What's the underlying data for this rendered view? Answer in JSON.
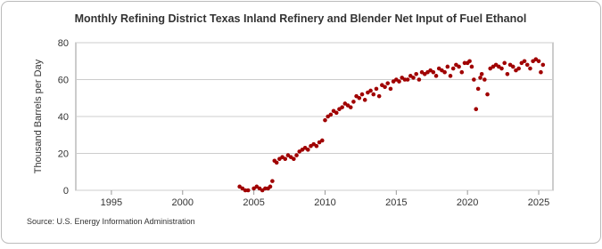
{
  "chart_data": {
    "type": "scatter",
    "title": "Monthly Refining District Texas Inland Refinery and Blender Net Input of Fuel Ethanol",
    "y_label": "Thousand Barrels per Day",
    "source": "Source: U.S. Energy Information Administration",
    "color": "#a00000",
    "x": [
      2004.0,
      2004.2,
      2004.4,
      2004.6,
      2005.0,
      2005.2,
      2005.4,
      2005.6,
      2005.8,
      2006.0,
      2006.15,
      2006.3,
      2006.45,
      2006.6,
      2006.8,
      2007.0,
      2007.2,
      2007.4,
      2007.6,
      2007.8,
      2008.0,
      2008.2,
      2008.4,
      2008.6,
      2008.8,
      2009.0,
      2009.2,
      2009.4,
      2009.6,
      2009.8,
      2010.0,
      2010.2,
      2010.4,
      2010.6,
      2010.8,
      2011.0,
      2011.2,
      2011.4,
      2011.6,
      2011.8,
      2012.0,
      2012.2,
      2012.4,
      2012.6,
      2012.8,
      2013.0,
      2013.2,
      2013.4,
      2013.6,
      2013.8,
      2014.0,
      2014.2,
      2014.4,
      2014.6,
      2014.8,
      2015.0,
      2015.2,
      2015.4,
      2015.6,
      2015.8,
      2016.0,
      2016.2,
      2016.4,
      2016.6,
      2016.8,
      2017.0,
      2017.2,
      2017.4,
      2017.6,
      2017.8,
      2018.0,
      2018.2,
      2018.4,
      2018.6,
      2018.8,
      2019.0,
      2019.2,
      2019.4,
      2019.6,
      2019.8,
      2020.0,
      2020.15,
      2020.3,
      2020.45,
      2020.6,
      2020.75,
      2020.9,
      2021.0,
      2021.2,
      2021.4,
      2021.6,
      2021.8,
      2022.0,
      2022.2,
      2022.4,
      2022.6,
      2022.8,
      2023.0,
      2023.2,
      2023.4,
      2023.6,
      2023.8,
      2024.0,
      2024.2,
      2024.4,
      2024.6,
      2024.8,
      2025.0,
      2025.15,
      2025.3
    ],
    "values": [
      2,
      1,
      0,
      0,
      1,
      2,
      1,
      0,
      1,
      1,
      2,
      5,
      16,
      15,
      17,
      18,
      17,
      19,
      18,
      17,
      19,
      21,
      22,
      23,
      22,
      24,
      25,
      24,
      26,
      27,
      38,
      40,
      41,
      43,
      42,
      44,
      45,
      47,
      46,
      45,
      48,
      51,
      50,
      52,
      49,
      53,
      54,
      52,
      55,
      51,
      57,
      56,
      58,
      55,
      59,
      60,
      59,
      61,
      60,
      60,
      62,
      61,
      63,
      60,
      64,
      63,
      64,
      65,
      64,
      62,
      66,
      65,
      64,
      67,
      62,
      66,
      68,
      67,
      64,
      69,
      69,
      70,
      67,
      60,
      44,
      55,
      61,
      63,
      60,
      52,
      66,
      67,
      68,
      67,
      66,
      69,
      63,
      68,
      67,
      65,
      66,
      69,
      70,
      68,
      66,
      70,
      71,
      70,
      64,
      68
    ],
    "xlim": [
      1992.5,
      2026
    ],
    "xticks": [
      1995,
      2000,
      2005,
      2010,
      2015,
      2020,
      2025
    ],
    "ylim": [
      0,
      80
    ],
    "yticks": [
      0,
      20,
      40,
      60,
      80
    ],
    "grid": true
  }
}
